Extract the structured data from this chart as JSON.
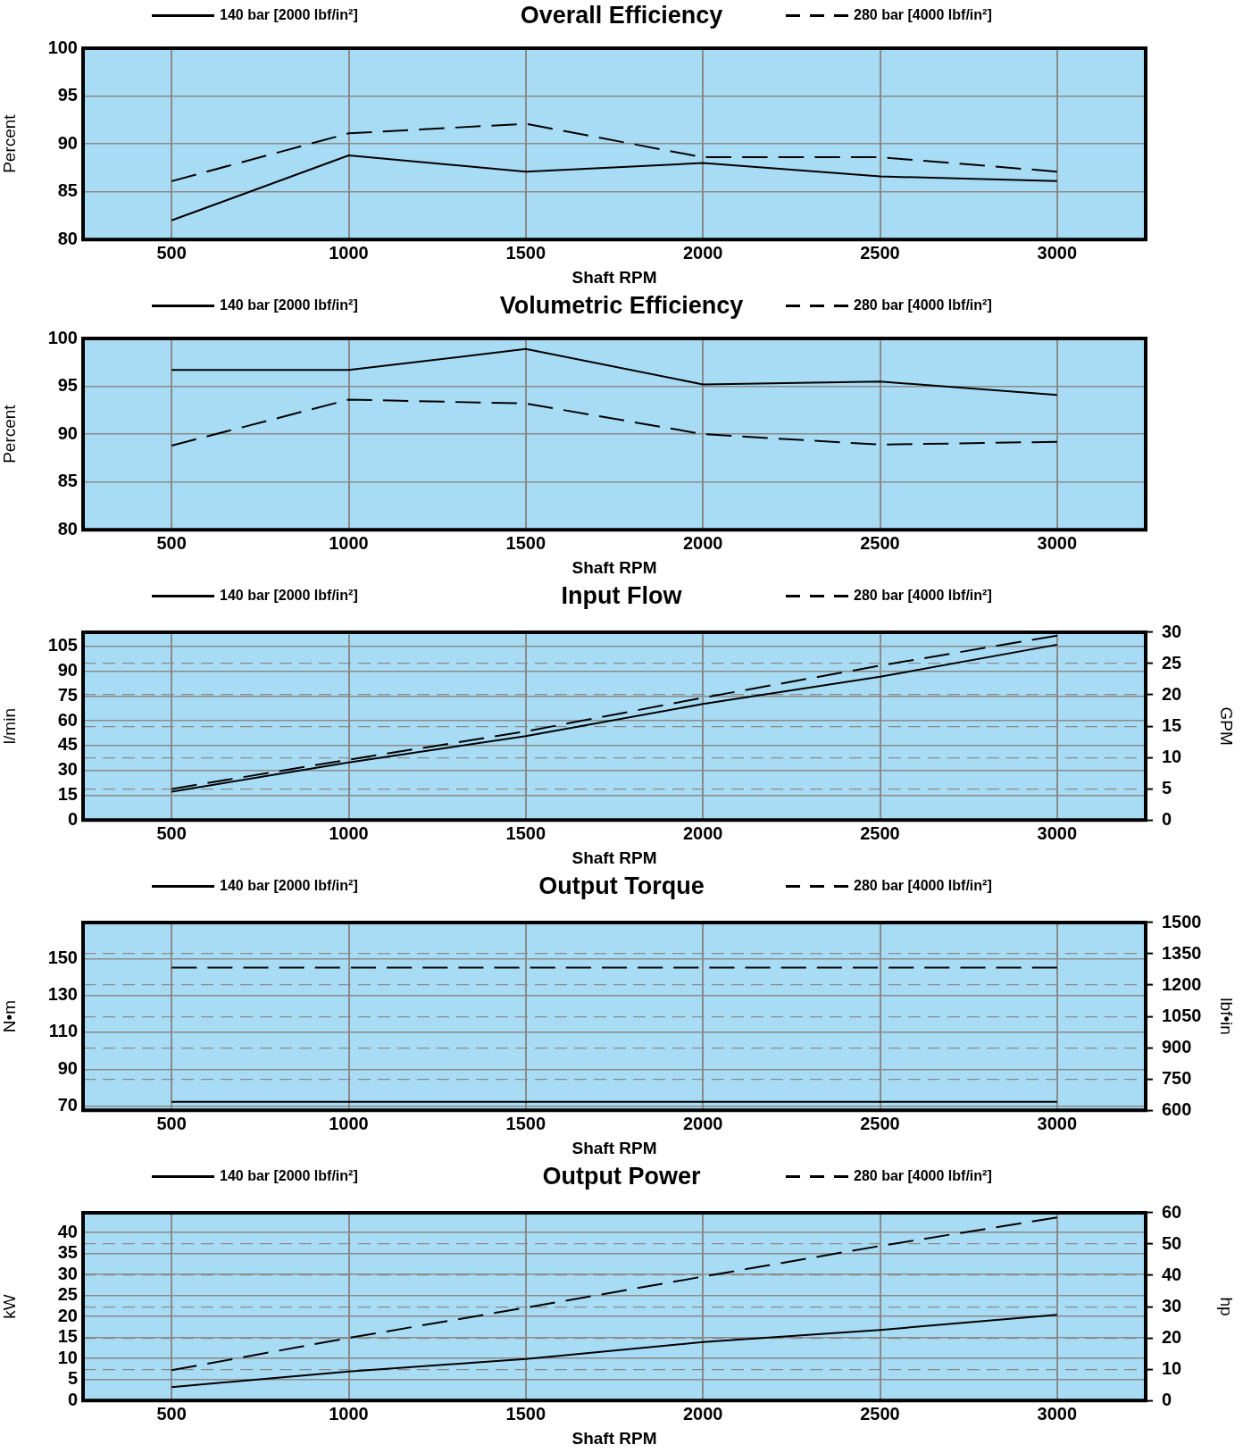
{
  "chart_data": [
    {
      "type": "line",
      "title": "Overall Efficiency",
      "xlabel": "Shaft RPM",
      "ylabel": "Percent",
      "x": [
        500,
        1000,
        1500,
        2000,
        2500,
        3000
      ],
      "xlim": [
        250,
        3250
      ],
      "xticks": [
        500,
        1000,
        1500,
        2000,
        2500,
        3000
      ],
      "ylim": [
        80,
        100
      ],
      "yticks": [
        80,
        85,
        90,
        95,
        100
      ],
      "grid": true,
      "legend": "top",
      "marker": "none",
      "series": [
        {
          "name": "140 bar [2000 lbf/in²]",
          "color": "#000000",
          "line_style": "solid",
          "values": [
            82.0,
            88.8,
            87.1,
            88.0,
            86.6,
            86.1
          ]
        },
        {
          "name": "280 bar [4000 lbf/in²]",
          "color": "#000000",
          "line_style": "dashed",
          "values": [
            86.1,
            91.1,
            92.1,
            88.6,
            88.6,
            87.1
          ]
        }
      ]
    },
    {
      "type": "line",
      "title": "Volumetric Efficiency",
      "xlabel": "Shaft RPM",
      "ylabel": "Percent",
      "x": [
        500,
        1000,
        1500,
        2000,
        2500,
        3000
      ],
      "xlim": [
        250,
        3250
      ],
      "xticks": [
        500,
        1000,
        1500,
        2000,
        2500,
        3000
      ],
      "ylim": [
        80,
        100
      ],
      "yticks": [
        80,
        85,
        90,
        95,
        100
      ],
      "grid": true,
      "legend": "top",
      "marker": "none",
      "series": [
        {
          "name": "140 bar [2000 lbf/in²]",
          "color": "#000000",
          "line_style": "solid",
          "values": [
            96.7,
            96.7,
            98.9,
            95.2,
            95.5,
            94.1
          ]
        },
        {
          "name": "280 bar [4000 lbf/in²]",
          "color": "#000000",
          "line_style": "dashed",
          "values": [
            88.8,
            93.6,
            93.2,
            90.0,
            88.9,
            89.2
          ]
        }
      ]
    },
    {
      "type": "line",
      "title": "Input Flow",
      "xlabel": "Shaft RPM",
      "ylabel": "l/min",
      "y2label": "GPM",
      "x": [
        500,
        1000,
        1500,
        2000,
        2500,
        3000
      ],
      "xlim": [
        250,
        3250
      ],
      "xticks": [
        500,
        1000,
        1500,
        2000,
        2500,
        3000
      ],
      "ylim": [
        0,
        113.6
      ],
      "yticks": [
        0,
        15,
        30,
        45,
        60,
        75,
        90,
        105
      ],
      "y2lim": [
        0,
        30
      ],
      "y2ticks": [
        0,
        5,
        10,
        15,
        20,
        25,
        30
      ],
      "grid": true,
      "legend": "top",
      "marker": "none",
      "series": [
        {
          "name": "140 bar [2000 lbf/in²]",
          "color": "#000000",
          "line_style": "solid",
          "values": [
            17.1,
            34.8,
            50.8,
            70.2,
            86.7,
            106.1
          ]
        },
        {
          "name": "280 bar [4000 lbf/in²]",
          "color": "#000000",
          "line_style": "dashed",
          "values": [
            18.8,
            36.5,
            53.6,
            74.0,
            93.4,
            111.6
          ]
        }
      ]
    },
    {
      "type": "line",
      "title": "Output Torque",
      "xlabel": "Shaft RPM",
      "ylabel": "N•m",
      "y2label": "lbf•in",
      "x": [
        500,
        1000,
        1500,
        2000,
        2500,
        3000
      ],
      "xlim": [
        250,
        3250
      ],
      "xticks": [
        500,
        1000,
        1500,
        2000,
        2500,
        3000
      ],
      "ylim": [
        67.8,
        169.5
      ],
      "yticks": [
        70,
        90,
        110,
        130,
        150
      ],
      "y2lim": [
        600,
        1500
      ],
      "y2ticks": [
        600,
        750,
        900,
        1050,
        1200,
        1350,
        1500
      ],
      "grid": true,
      "legend": "top",
      "marker": "none",
      "series": [
        {
          "name": "140 bar [2000 lbf/in²]",
          "color": "#000000",
          "line_style": "solid",
          "values": [
            72.4,
            72.4,
            72.4,
            72.4,
            72.4,
            72.4
          ]
        },
        {
          "name": "280 bar [4000 lbf/in²]",
          "color": "#000000",
          "line_style": "dashed",
          "values": [
            145.1,
            145.1,
            145.1,
            145.1,
            145.1,
            145.1
          ]
        }
      ]
    },
    {
      "type": "line",
      "title": "Output Power",
      "xlabel": "Shaft RPM",
      "ylabel": "kW",
      "y2label": "hp",
      "x": [
        500,
        1000,
        1500,
        2000,
        2500,
        3000
      ],
      "xlim": [
        250,
        3250
      ],
      "xticks": [
        500,
        1000,
        1500,
        2000,
        2500,
        3000
      ],
      "ylim": [
        0,
        44.7
      ],
      "yticks": [
        0,
        5,
        10,
        15,
        20,
        25,
        30,
        35,
        40
      ],
      "y2lim": [
        0,
        60
      ],
      "y2ticks": [
        0,
        10,
        20,
        30,
        40,
        50,
        60
      ],
      "grid": true,
      "legend": "top",
      "marker": "none",
      "series": [
        {
          "name": "140 bar [2000 lbf/in²]",
          "color": "#000000",
          "line_style": "solid",
          "values": [
            3.2,
            6.9,
            9.9,
            13.9,
            16.8,
            20.4
          ]
        },
        {
          "name": "280 bar [4000 lbf/in²]",
          "color": "#000000",
          "line_style": "dashed",
          "values": [
            7.2,
            14.9,
            22.1,
            29.5,
            36.8,
            43.6
          ]
        }
      ]
    }
  ]
}
